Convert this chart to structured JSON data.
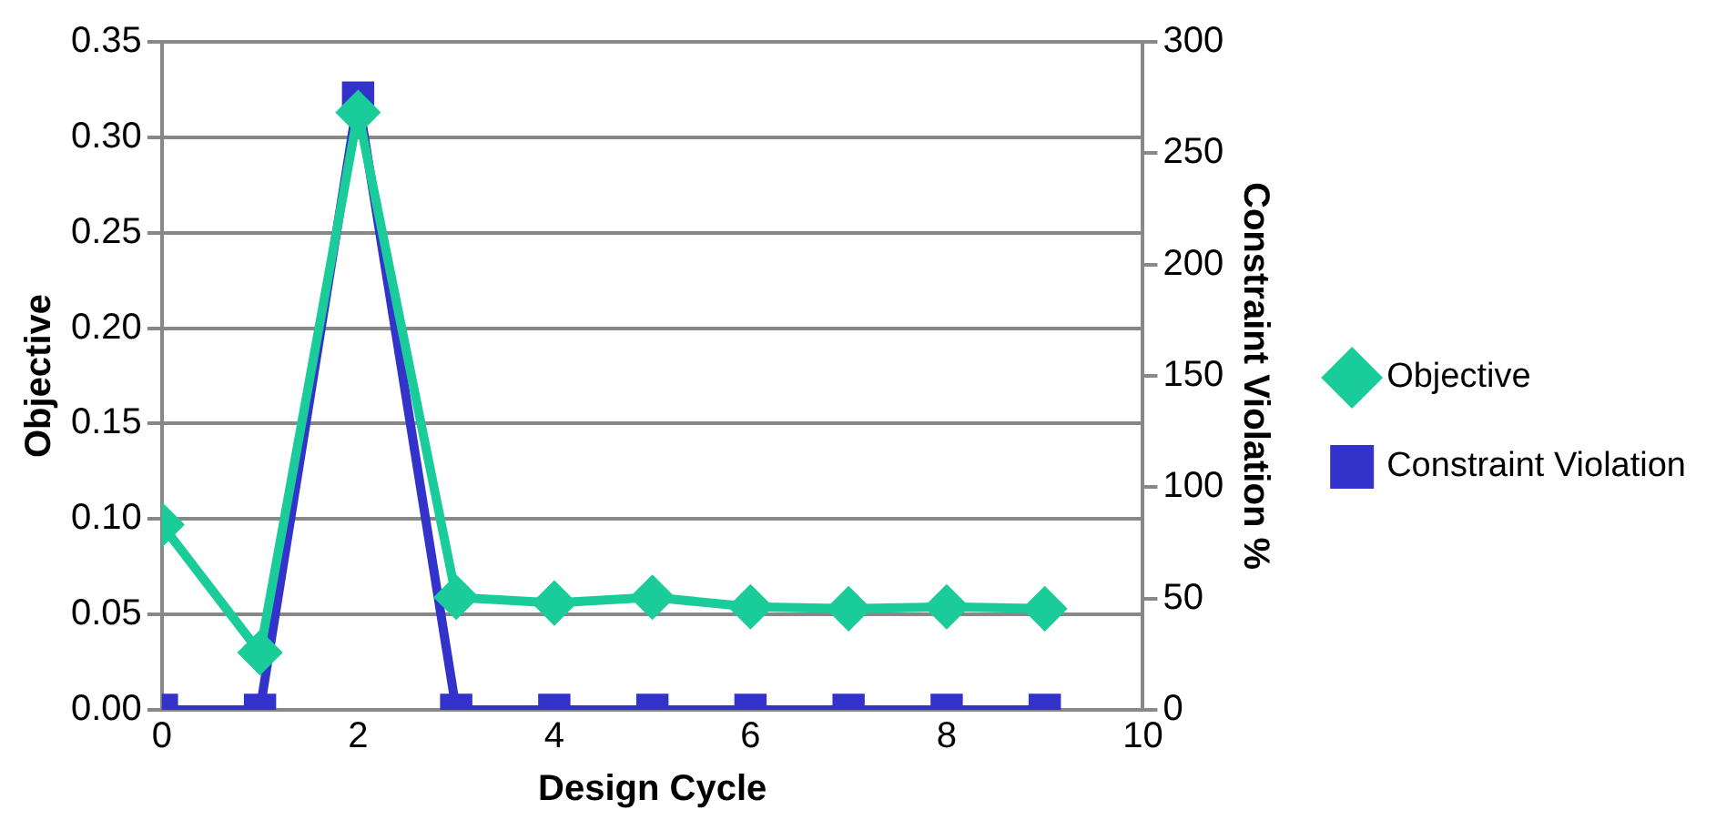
{
  "chart_data": {
    "type": "line",
    "xlabel": "Design Cycle",
    "ylabel": "Objective",
    "y2label": "Constraint Violation %",
    "x": [
      0,
      1,
      2,
      3,
      4,
      5,
      6,
      7,
      8,
      9
    ],
    "series": [
      {
        "name": "Objective",
        "color": "#19cc99",
        "marker": "diamond",
        "values": [
          0.097,
          0.03,
          0.313,
          0.059,
          0.056,
          0.059,
          0.054,
          0.053,
          0.054,
          0.053
        ]
      },
      {
        "name": "Constraint Violation",
        "color": "#3333cc",
        "marker": "square",
        "axis": "y2",
        "values": [
          0,
          0,
          275,
          0,
          0,
          0,
          0,
          0,
          0,
          0
        ]
      }
    ],
    "xlim": [
      0,
      10
    ],
    "xticks": [
      0,
      2,
      4,
      6,
      8,
      10
    ],
    "ylim": [
      0,
      0.35
    ],
    "yticks": [
      {
        "value": 0,
        "label": "0.00"
      },
      0.05,
      {
        "value": 0.1,
        "label": "0.10"
      },
      0.15,
      {
        "value": 0.2,
        "label": "0.20"
      },
      0.25,
      {
        "value": 0.3,
        "label": "0.30"
      },
      0.35
    ],
    "y2lim": [
      0,
      300
    ],
    "y2ticks": [
      0,
      50,
      100,
      150,
      200,
      250,
      300
    ],
    "grid": "y",
    "legend": "right",
    "line_style": "solid"
  }
}
